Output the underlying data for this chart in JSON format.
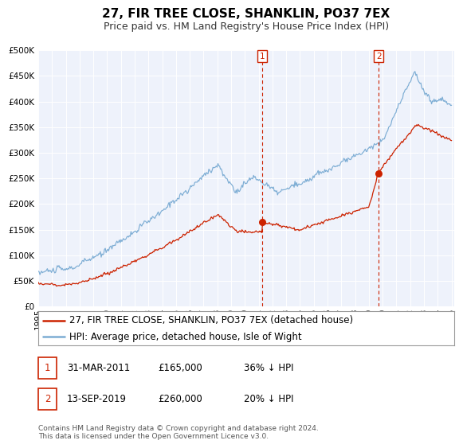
{
  "title": "27, FIR TREE CLOSE, SHANKLIN, PO37 7EX",
  "subtitle": "Price paid vs. HM Land Registry's House Price Index (HPI)",
  "ylim": [
    0,
    500000
  ],
  "yticks": [
    0,
    50000,
    100000,
    150000,
    200000,
    250000,
    300000,
    350000,
    400000,
    450000,
    500000
  ],
  "xlim_start": 1995.0,
  "xlim_end": 2025.2,
  "background_color": "#ffffff",
  "plot_bg_color": "#eef2fb",
  "grid_color": "#ffffff",
  "hpi_color": "#7dadd4",
  "price_color": "#cc2200",
  "sale1_date": 2011.25,
  "sale1_price": 165000,
  "sale1_label": "1",
  "sale2_date": 2019.71,
  "sale2_price": 260000,
  "sale2_label": "2",
  "legend_entries": [
    "27, FIR TREE CLOSE, SHANKLIN, PO37 7EX (detached house)",
    "HPI: Average price, detached house, Isle of Wight"
  ],
  "table_rows": [
    {
      "label": "1",
      "date": "31-MAR-2011",
      "price": "£165,000",
      "note": "36% ↓ HPI"
    },
    {
      "label": "2",
      "date": "13-SEP-2019",
      "price": "£260,000",
      "note": "20% ↓ HPI"
    }
  ],
  "footer": "Contains HM Land Registry data © Crown copyright and database right 2024.\nThis data is licensed under the Open Government Licence v3.0.",
  "title_fontsize": 11,
  "subtitle_fontsize": 9,
  "tick_fontsize": 7.5,
  "legend_fontsize": 8.5
}
